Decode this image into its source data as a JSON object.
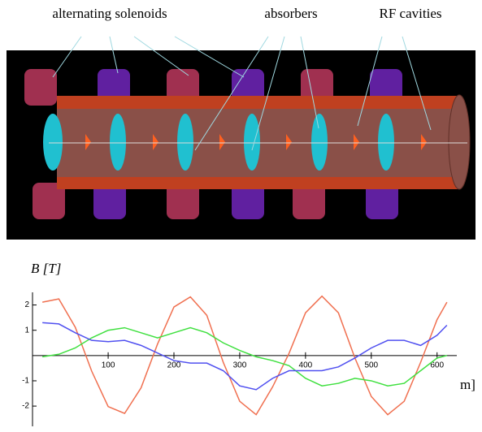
{
  "annotations": [
    "alternating solenoids",
    "absorbers",
    "RF cavities"
  ],
  "chart_data": {
    "type": "line",
    "ylabel": "B [T]",
    "xlabel": "m]",
    "x": [
      0,
      25,
      50,
      75,
      100,
      125,
      150,
      175,
      200,
      225,
      250,
      275,
      300,
      325,
      350,
      375,
      400,
      425,
      450,
      475,
      500,
      525,
      550,
      575,
      600,
      615
    ],
    "series": [
      {
        "color": "#f07050",
        "values": [
          2.11,
          2.24,
          1.12,
          -0.62,
          -2.02,
          -2.29,
          -1.28,
          0.45,
          1.92,
          2.32,
          1.59,
          -0.27,
          -1.81,
          -2.34,
          -1.24,
          0.09,
          1.69,
          2.35,
          1.69,
          -0.09,
          -1.62,
          -2.34,
          -1.81,
          -0.27,
          1.42,
          2.11
        ]
      },
      {
        "color": "#40e040",
        "values": [
          -0.05,
          0.05,
          0.3,
          0.7,
          1.0,
          1.1,
          0.9,
          0.7,
          0.9,
          1.1,
          0.9,
          0.5,
          0.2,
          -0.05,
          -0.2,
          -0.4,
          -0.9,
          -1.2,
          -1.1,
          -0.9,
          -1.0,
          -1.2,
          -1.1,
          -0.6,
          -0.1,
          0.0
        ]
      },
      {
        "color": "#5050f0",
        "values": [
          1.3,
          1.25,
          0.9,
          0.6,
          0.55,
          0.6,
          0.4,
          0.1,
          -0.2,
          -0.3,
          -0.3,
          -0.6,
          -1.2,
          -1.35,
          -0.9,
          -0.6,
          -0.6,
          -0.6,
          -0.45,
          -0.1,
          0.3,
          0.6,
          0.6,
          0.4,
          0.8,
          1.2
        ]
      }
    ],
    "xlim": [
      -15,
      630
    ],
    "ylim": [
      -2.8,
      2.5
    ],
    "xticks": [
      100,
      200,
      300,
      400,
      500,
      600
    ],
    "yticks": [
      -2,
      -1,
      1,
      2
    ]
  }
}
